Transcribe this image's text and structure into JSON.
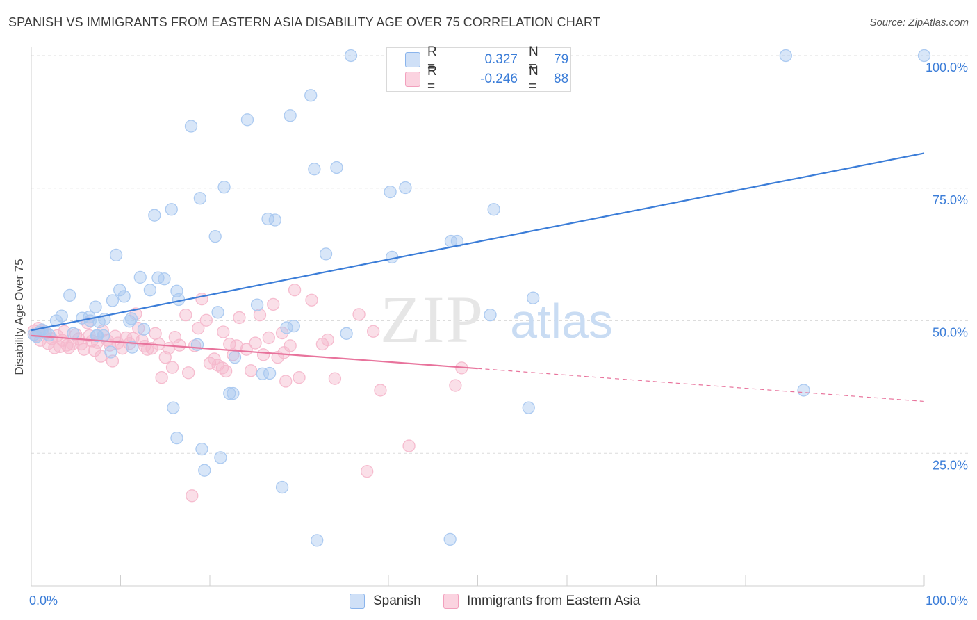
{
  "header": {
    "title": "SPANISH VS IMMIGRANTS FROM EASTERN ASIA DISABILITY AGE OVER 75 CORRELATION CHART",
    "source": "Source: ZipAtlas.com"
  },
  "watermark": {
    "zip": "ZIP",
    "atlas": "atlas"
  },
  "legend_top": {
    "rows": [
      {
        "r_label": "R =",
        "r_value": "0.327",
        "n_label": "N =",
        "n_value": "79",
        "color": "#8ab4ec"
      },
      {
        "r_label": "R =",
        "r_value": "-0.246",
        "n_label": "N =",
        "n_value": "88",
        "color": "#f2a0bd"
      }
    ]
  },
  "legend_bottom": {
    "items": [
      {
        "label": "Spanish",
        "color": "#8ab4ec"
      },
      {
        "label": "Immigrants from Eastern Asia",
        "color": "#f2a0bd"
      }
    ]
  },
  "chart_data": {
    "type": "scatter",
    "title": "SPANISH VS IMMIGRANTS FROM EASTERN ASIA DISABILITY AGE OVER 75 CORRELATION CHART",
    "xlabel": "",
    "ylabel": "Disability Age Over 75",
    "xlim": [
      0,
      100
    ],
    "ylim": [
      0,
      100
    ],
    "x_tick_labels": [
      "0.0%",
      "100.0%"
    ],
    "y_tick_labels": [
      {
        "value": 25,
        "label": "25.0%"
      },
      {
        "value": 50,
        "label": "50.0%"
      },
      {
        "value": 75,
        "label": "75.0%"
      },
      {
        "value": 100,
        "label": "100.0%"
      }
    ],
    "grid": "horizontal dashed",
    "legend": "top-center",
    "series": [
      {
        "name": "Spanish",
        "color": "#3b7dd8",
        "fill": "#a9c8f0",
        "trend": {
          "x": [
            0,
            100
          ],
          "y": [
            48.2,
            81.6
          ],
          "dashed_from": null
        },
        "points": [
          [
            0.3,
            47.4
          ],
          [
            0.6,
            47.0
          ],
          [
            0.9,
            47.8
          ],
          [
            1.2,
            48.3
          ],
          [
            1.6,
            47.9
          ],
          [
            2.0,
            47.3
          ],
          [
            2.8,
            50.0
          ],
          [
            3.4,
            50.9
          ],
          [
            4.3,
            54.8
          ],
          [
            4.7,
            47.6
          ],
          [
            5.7,
            50.5
          ],
          [
            6.6,
            50.0
          ],
          [
            6.5,
            50.7
          ],
          [
            7.2,
            52.6
          ],
          [
            7.3,
            47.2
          ],
          [
            7.4,
            47.2
          ],
          [
            7.6,
            49.8
          ],
          [
            8.1,
            47.2
          ],
          [
            8.2,
            50.3
          ],
          [
            8.9,
            44.1
          ],
          [
            9.1,
            53.8
          ],
          [
            9.5,
            62.4
          ],
          [
            9.9,
            55.8
          ],
          [
            10.4,
            54.6
          ],
          [
            11.0,
            49.9
          ],
          [
            11.2,
            50.4
          ],
          [
            11.3,
            45.0
          ],
          [
            12.2,
            58.2
          ],
          [
            12.6,
            48.4
          ],
          [
            13.3,
            55.8
          ],
          [
            13.8,
            69.9
          ],
          [
            14.2,
            58.1
          ],
          [
            14.9,
            57.9
          ],
          [
            15.7,
            71.0
          ],
          [
            15.9,
            33.6
          ],
          [
            16.3,
            27.9
          ],
          [
            16.3,
            55.6
          ],
          [
            16.5,
            54.0
          ],
          [
            17.9,
            86.7
          ],
          [
            18.6,
            45.5
          ],
          [
            18.9,
            73.1
          ],
          [
            19.1,
            25.8
          ],
          [
            19.4,
            21.8
          ],
          [
            20.6,
            65.9
          ],
          [
            20.9,
            51.6
          ],
          [
            21.2,
            24.2
          ],
          [
            21.6,
            75.2
          ],
          [
            22.2,
            36.3
          ],
          [
            22.6,
            36.3
          ],
          [
            22.8,
            43.1
          ],
          [
            24.2,
            87.9
          ],
          [
            25.3,
            53.0
          ],
          [
            25.9,
            40.0
          ],
          [
            26.5,
            69.2
          ],
          [
            26.7,
            40.1
          ],
          [
            27.3,
            69.0
          ],
          [
            28.6,
            48.7
          ],
          [
            28.1,
            18.6
          ],
          [
            29.4,
            49.0
          ],
          [
            29.0,
            88.7
          ],
          [
            31.3,
            92.5
          ],
          [
            31.7,
            78.6
          ],
          [
            32.0,
            8.6
          ],
          [
            33.0,
            62.6
          ],
          [
            34.2,
            78.9
          ],
          [
            35.3,
            47.6
          ],
          [
            35.8,
            100.0
          ],
          [
            40.2,
            74.3
          ],
          [
            40.4,
            62.0
          ],
          [
            41.9,
            75.1
          ],
          [
            46.9,
            8.8
          ],
          [
            47.0,
            65.0
          ],
          [
            47.7,
            65.0
          ],
          [
            51.4,
            51.1
          ],
          [
            51.8,
            71.0
          ],
          [
            55.7,
            33.6
          ],
          [
            56.2,
            54.3
          ],
          [
            84.5,
            100.0
          ],
          [
            86.5,
            36.9
          ],
          [
            100.0,
            100.0
          ]
        ]
      },
      {
        "name": "Immigrants from Eastern Asia",
        "color": "#e8739c",
        "fill": "#f5b8cc",
        "trend": {
          "x": [
            0,
            100
          ],
          "y": [
            47.2,
            34.8
          ],
          "dashed_from": 50
        },
        "points": [
          [
            0.3,
            48.1
          ],
          [
            0.5,
            47.2
          ],
          [
            0.8,
            48.6
          ],
          [
            1.0,
            46.3
          ],
          [
            1.3,
            48.1
          ],
          [
            1.6,
            47.6
          ],
          [
            1.9,
            45.7
          ],
          [
            2.3,
            46.6
          ],
          [
            2.6,
            44.9
          ],
          [
            2.9,
            47.2
          ],
          [
            3.2,
            45.1
          ],
          [
            3.5,
            46.3
          ],
          [
            3.7,
            48.0
          ],
          [
            4.0,
            45.4
          ],
          [
            4.2,
            44.9
          ],
          [
            4.6,
            45.6
          ],
          [
            5.0,
            47.4
          ],
          [
            5.3,
            46.6
          ],
          [
            5.6,
            45.6
          ],
          [
            5.9,
            44.6
          ],
          [
            6.3,
            49.6
          ],
          [
            6.5,
            47.2
          ],
          [
            6.8,
            46.2
          ],
          [
            7.1,
            44.4
          ],
          [
            7.4,
            45.9
          ],
          [
            7.8,
            43.3
          ],
          [
            8.0,
            48.1
          ],
          [
            8.5,
            46.3
          ],
          [
            8.8,
            45.4
          ],
          [
            9.1,
            42.4
          ],
          [
            9.4,
            47.1
          ],
          [
            9.7,
            45.8
          ],
          [
            10.2,
            44.8
          ],
          [
            10.6,
            46.8
          ],
          [
            11.0,
            45.7
          ],
          [
            11.4,
            46.7
          ],
          [
            11.7,
            51.3
          ],
          [
            12.0,
            48.6
          ],
          [
            12.4,
            46.3
          ],
          [
            12.7,
            45.2
          ],
          [
            13.0,
            44.6
          ],
          [
            13.5,
            44.8
          ],
          [
            13.9,
            47.6
          ],
          [
            14.3,
            45.6
          ],
          [
            14.6,
            39.3
          ],
          [
            15.0,
            43.1
          ],
          [
            15.4,
            44.8
          ],
          [
            15.8,
            41.2
          ],
          [
            16.1,
            46.9
          ],
          [
            16.6,
            45.4
          ],
          [
            17.3,
            51.1
          ],
          [
            17.6,
            40.2
          ],
          [
            18.0,
            17.0
          ],
          [
            18.3,
            45.3
          ],
          [
            18.7,
            48.6
          ],
          [
            19.1,
            54.1
          ],
          [
            19.6,
            50.1
          ],
          [
            20.0,
            42.0
          ],
          [
            20.5,
            42.8
          ],
          [
            20.9,
            41.6
          ],
          [
            21.4,
            41.1
          ],
          [
            21.8,
            40.5
          ],
          [
            22.2,
            45.6
          ],
          [
            22.6,
            43.6
          ],
          [
            23.0,
            45.3
          ],
          [
            23.3,
            50.6
          ],
          [
            24.1,
            44.6
          ],
          [
            24.6,
            40.6
          ],
          [
            25.1,
            45.8
          ],
          [
            25.6,
            51.1
          ],
          [
            26.0,
            43.6
          ],
          [
            26.6,
            46.8
          ],
          [
            27.1,
            53.1
          ],
          [
            27.6,
            43.1
          ],
          [
            28.1,
            47.7
          ],
          [
            28.5,
            38.6
          ],
          [
            29.0,
            45.3
          ],
          [
            29.5,
            55.8
          ],
          [
            30.0,
            39.3
          ],
          [
            31.4,
            53.9
          ],
          [
            32.6,
            45.6
          ],
          [
            33.2,
            46.4
          ],
          [
            34.0,
            39.1
          ],
          [
            36.7,
            51.2
          ],
          [
            38.3,
            48.0
          ],
          [
            39.1,
            36.9
          ],
          [
            42.3,
            26.4
          ],
          [
            48.2,
            41.1
          ],
          [
            37.6,
            21.6
          ],
          [
            28.3,
            44.0
          ],
          [
            21.5,
            47.9
          ],
          [
            47.5,
            37.8
          ]
        ]
      }
    ]
  }
}
